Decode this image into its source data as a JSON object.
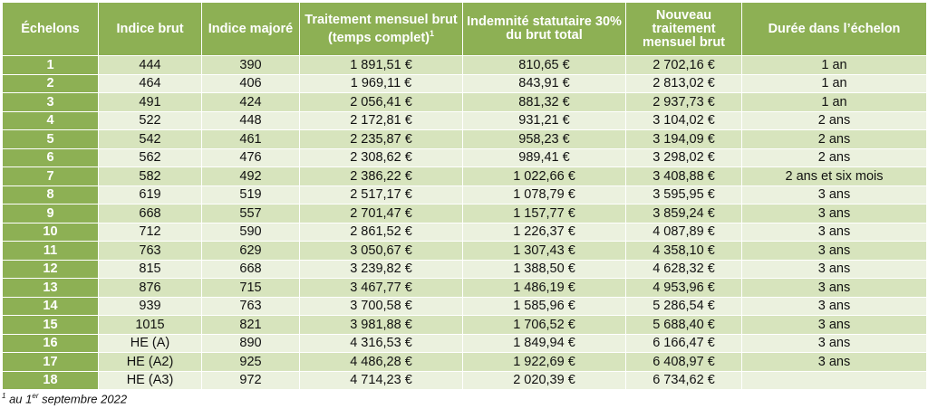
{
  "headers": {
    "echelons": "Échelons",
    "indice_brut": "Indice brut",
    "indice_majore": "Indice majoré",
    "traitement": "Traitement mensuel brut (temps complet)",
    "traitement_sup": "1",
    "indemnite": "Indemnité statutaire 30% du brut total",
    "nouveau": "Nouveau traitement mensuel brut",
    "duree": "Durée dans l’échelon"
  },
  "rows": [
    [
      "1",
      "444",
      "390",
      "1 891,51 €",
      "810,65 €",
      "2 702,16 €",
      "1 an"
    ],
    [
      "2",
      "464",
      "406",
      "1 969,11 €",
      "843,91 €",
      "2 813,02 €",
      "1 an"
    ],
    [
      "3",
      "491",
      "424",
      "2 056,41 €",
      "881,32 €",
      "2 937,73 €",
      "1 an"
    ],
    [
      "4",
      "522",
      "448",
      "2 172,81 €",
      "931,21 €",
      "3 104,02 €",
      "2 ans"
    ],
    [
      "5",
      "542",
      "461",
      "2 235,87 €",
      "958,23 €",
      "3 194,09 €",
      "2 ans"
    ],
    [
      "6",
      "562",
      "476",
      "2 308,62 €",
      "989,41 €",
      "3 298,02 €",
      "2 ans"
    ],
    [
      "7",
      "582",
      "492",
      "2 386,22 €",
      "1 022,66 €",
      "3 408,88 €",
      "2 ans et six mois"
    ],
    [
      "8",
      "619",
      "519",
      "2 517,17 €",
      "1 078,79 €",
      "3 595,95 €",
      "3 ans"
    ],
    [
      "9",
      "668",
      "557",
      "2 701,47 €",
      "1 157,77 €",
      "3 859,24 €",
      "3 ans"
    ],
    [
      "10",
      "712",
      "590",
      "2 861,52 €",
      "1 226,37 €",
      "4 087,89 €",
      "3 ans"
    ],
    [
      "11",
      "763",
      "629",
      "3 050,67 €",
      "1 307,43 €",
      "4 358,10 €",
      "3 ans"
    ],
    [
      "12",
      "815",
      "668",
      "3 239,82 €",
      "1 388,50 €",
      "4 628,32 €",
      "3 ans"
    ],
    [
      "13",
      "876",
      "715",
      "3 467,77 €",
      "1 486,19 €",
      "4 953,96 €",
      "3 ans"
    ],
    [
      "14",
      "939",
      "763",
      "3 700,58 €",
      "1 585,96 €",
      "5 286,54 €",
      "3 ans"
    ],
    [
      "15",
      "1015",
      "821",
      "3 981,88 €",
      "1 706,52 €",
      "5 688,40 €",
      "3 ans"
    ],
    [
      "16",
      "HE (A)",
      "890",
      "4 316,53 €",
      "1 849,94 €",
      "6 166,47 €",
      "3 ans"
    ],
    [
      "17",
      "HE (A2)",
      "925",
      "4 486,28 €",
      "1 922,69 €",
      "6 408,97 €",
      "3 ans"
    ],
    [
      "18",
      "HE (A3)",
      "972",
      "4 714,23 €",
      "2 020,39 €",
      "6 734,62 €",
      ""
    ]
  ],
  "footnote": {
    "mark": "1",
    "text_a": " au 1",
    "sup": "er",
    "text_b": " septembre 2022"
  },
  "colors": {
    "header": "#8db054",
    "row_odd": "#d7e4bd",
    "row_even": "#ebf1de"
  }
}
